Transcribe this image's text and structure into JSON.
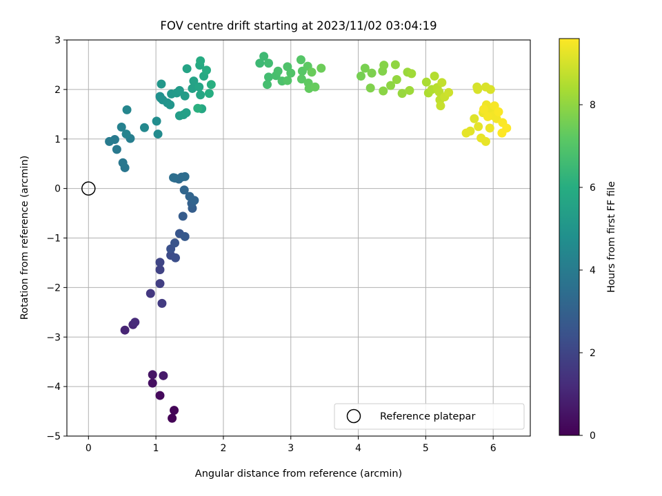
{
  "chart_data": {
    "type": "scatter",
    "title": "FOV centre drift starting at 2023/11/02 03:04:19",
    "xlabel": "Angular distance from reference (arcmin)",
    "ylabel": "Rotation from reference (arcmin)",
    "xlim": [
      -0.32,
      6.55
    ],
    "ylim": [
      -5.0,
      3.0
    ],
    "xticks": [
      0,
      1,
      2,
      3,
      4,
      5,
      6
    ],
    "yticks": [
      -5,
      -4,
      -3,
      -2,
      -1,
      0,
      1,
      2,
      3
    ],
    "xtick_labels": [
      "0",
      "1",
      "2",
      "3",
      "4",
      "5",
      "6"
    ],
    "ytick_labels": [
      "−5",
      "−4",
      "−3",
      "−2",
      "−1",
      "0",
      "1",
      "2",
      "3"
    ],
    "grid": true,
    "colorbar": {
      "label": "Hours from first FF file",
      "colormap": "viridis",
      "range": [
        0,
        9.6
      ],
      "ticks": [
        0,
        2,
        4,
        6,
        8
      ],
      "tick_labels": [
        "0",
        "2",
        "4",
        "6",
        "8"
      ]
    },
    "legend": {
      "position": "bottom-right",
      "entries": [
        "Reference platepar"
      ]
    },
    "reference_point": {
      "x": 0,
      "y": 0,
      "label": "Reference platepar"
    },
    "points": [
      [
        1.24,
        -4.64,
        0.05
      ],
      [
        1.27,
        -4.48,
        0.1
      ],
      [
        1.06,
        -4.18,
        0.25
      ],
      [
        0.95,
        -3.93,
        0.4
      ],
      [
        0.95,
        -3.76,
        0.55
      ],
      [
        1.11,
        -3.78,
        0.7
      ],
      [
        0.54,
        -2.86,
        1.0
      ],
      [
        0.66,
        -2.75,
        1.1
      ],
      [
        0.69,
        -2.7,
        1.2
      ],
      [
        0.92,
        -2.12,
        1.6
      ],
      [
        1.09,
        -2.32,
        1.7
      ],
      [
        1.06,
        -1.92,
        1.8
      ],
      [
        1.06,
        -1.64,
        1.9
      ],
      [
        1.06,
        -1.49,
        2.0
      ],
      [
        1.22,
        -1.35,
        2.2
      ],
      [
        1.29,
        -1.4,
        2.3
      ],
      [
        1.22,
        -1.22,
        2.4
      ],
      [
        1.28,
        -1.1,
        2.5
      ],
      [
        1.35,
        -0.91,
        2.6
      ],
      [
        1.43,
        -0.97,
        2.7
      ],
      [
        1.4,
        -0.56,
        2.8
      ],
      [
        1.54,
        -0.4,
        2.9
      ],
      [
        1.53,
        -0.3,
        3.0
      ],
      [
        1.57,
        -0.24,
        3.1
      ],
      [
        1.5,
        -0.16,
        3.15
      ],
      [
        1.42,
        -0.03,
        3.2
      ],
      [
        1.28,
        0.21,
        3.3
      ],
      [
        1.34,
        0.19,
        3.35
      ],
      [
        1.38,
        0.23,
        3.4
      ],
      [
        1.43,
        0.24,
        3.45
      ],
      [
        1.26,
        0.22,
        3.5
      ],
      [
        0.54,
        0.42,
        3.8
      ],
      [
        0.51,
        0.52,
        3.85
      ],
      [
        0.42,
        0.79,
        3.9
      ],
      [
        0.39,
        0.99,
        3.95
      ],
      [
        0.31,
        0.95,
        4.0
      ],
      [
        0.62,
        1.01,
        4.1
      ],
      [
        0.49,
        1.24,
        4.2
      ],
      [
        0.56,
        1.1,
        4.3
      ],
      [
        0.57,
        1.59,
        4.4
      ],
      [
        0.83,
        1.23,
        4.5
      ],
      [
        1.03,
        1.1,
        4.6
      ],
      [
        1.01,
        1.36,
        4.7
      ],
      [
        1.07,
        1.83,
        4.8
      ],
      [
        1.06,
        1.86,
        4.85
      ],
      [
        1.1,
        1.79,
        4.9
      ],
      [
        1.17,
        1.73,
        4.95
      ],
      [
        1.21,
        1.69,
        5.0
      ],
      [
        1.08,
        2.11,
        5.1
      ],
      [
        1.23,
        1.91,
        5.15
      ],
      [
        1.31,
        1.93,
        5.2
      ],
      [
        1.35,
        1.98,
        5.25
      ],
      [
        1.43,
        1.87,
        5.3
      ],
      [
        1.35,
        1.47,
        5.35
      ],
      [
        1.41,
        1.49,
        5.4
      ],
      [
        1.45,
        1.53,
        5.45
      ],
      [
        1.54,
        2.02,
        5.5
      ],
      [
        1.56,
        2.17,
        5.55
      ],
      [
        1.46,
        2.42,
        5.6
      ],
      [
        1.64,
        2.05,
        5.65
      ],
      [
        1.66,
        1.89,
        5.7
      ],
      [
        1.68,
        1.61,
        5.75
      ],
      [
        1.71,
        2.27,
        5.8
      ],
      [
        1.65,
        2.49,
        5.85
      ],
      [
        1.66,
        2.58,
        5.9
      ],
      [
        1.75,
        2.39,
        5.95
      ],
      [
        1.79,
        1.92,
        6.0
      ],
      [
        1.82,
        2.1,
        6.05
      ],
      [
        1.62,
        1.62,
        6.1
      ],
      [
        2.54,
        2.53,
        6.5
      ],
      [
        2.6,
        2.67,
        6.55
      ],
      [
        2.67,
        2.53,
        6.6
      ],
      [
        2.67,
        2.25,
        6.65
      ],
      [
        2.65,
        2.1,
        6.7
      ],
      [
        2.78,
        2.28,
        6.75
      ],
      [
        2.81,
        2.37,
        6.8
      ],
      [
        2.87,
        2.17,
        6.85
      ],
      [
        2.95,
        2.46,
        6.9
      ],
      [
        3.0,
        2.33,
        6.95
      ],
      [
        2.95,
        2.18,
        7.0
      ],
      [
        3.15,
        2.6,
        7.05
      ],
      [
        3.17,
        2.37,
        7.1
      ],
      [
        3.16,
        2.21,
        7.15
      ],
      [
        3.25,
        2.47,
        7.2
      ],
      [
        3.26,
        2.13,
        7.25
      ],
      [
        3.27,
        2.02,
        7.3
      ],
      [
        3.36,
        2.05,
        7.35
      ],
      [
        3.31,
        2.35,
        7.4
      ],
      [
        3.45,
        2.43,
        7.45
      ],
      [
        4.04,
        2.27,
        7.6
      ],
      [
        4.1,
        2.43,
        7.65
      ],
      [
        4.2,
        2.33,
        7.7
      ],
      [
        4.18,
        2.03,
        7.75
      ],
      [
        4.36,
        2.37,
        7.8
      ],
      [
        4.38,
        2.49,
        7.85
      ],
      [
        4.37,
        1.97,
        7.9
      ],
      [
        4.48,
        2.08,
        7.95
      ],
      [
        4.55,
        2.5,
        8.0
      ],
      [
        4.57,
        2.2,
        8.05
      ],
      [
        4.65,
        1.92,
        8.1
      ],
      [
        4.73,
        2.35,
        8.15
      ],
      [
        4.76,
        1.98,
        8.2
      ],
      [
        4.79,
        2.32,
        8.25
      ],
      [
        5.01,
        2.15,
        8.4
      ],
      [
        5.04,
        1.93,
        8.45
      ],
      [
        5.09,
        2.0,
        8.5
      ],
      [
        5.13,
        2.27,
        8.55
      ],
      [
        5.17,
        2.04,
        8.6
      ],
      [
        5.2,
        1.95,
        8.65
      ],
      [
        5.21,
        1.79,
        8.7
      ],
      [
        5.24,
        2.14,
        8.75
      ],
      [
        5.22,
        1.67,
        8.8
      ],
      [
        5.28,
        1.85,
        8.85
      ],
      [
        5.34,
        1.94,
        8.9
      ],
      [
        5.76,
        2.05,
        9.0
      ],
      [
        5.77,
        2.0,
        9.05
      ],
      [
        5.89,
        2.05,
        9.1
      ],
      [
        5.96,
        2.0,
        9.1
      ],
      [
        5.72,
        1.41,
        9.15
      ],
      [
        5.66,
        1.16,
        9.2
      ],
      [
        5.6,
        1.12,
        9.25
      ],
      [
        5.78,
        1.25,
        9.25
      ],
      [
        5.82,
        1.02,
        9.3
      ],
      [
        5.89,
        0.95,
        9.3
      ],
      [
        5.95,
        1.22,
        9.35
      ],
      [
        5.85,
        1.53,
        9.35
      ],
      [
        5.9,
        1.69,
        9.4
      ],
      [
        5.96,
        1.6,
        9.4
      ],
      [
        6.0,
        1.47,
        9.45
      ],
      [
        6.05,
        1.41,
        9.45
      ],
      [
        5.92,
        1.45,
        9.5
      ],
      [
        5.86,
        1.6,
        9.5
      ],
      [
        6.02,
        1.67,
        9.5
      ],
      [
        6.08,
        1.55,
        9.55
      ],
      [
        6.14,
        1.33,
        9.55
      ],
      [
        6.2,
        1.22,
        9.6
      ],
      [
        6.13,
        1.12,
        9.6
      ]
    ]
  }
}
